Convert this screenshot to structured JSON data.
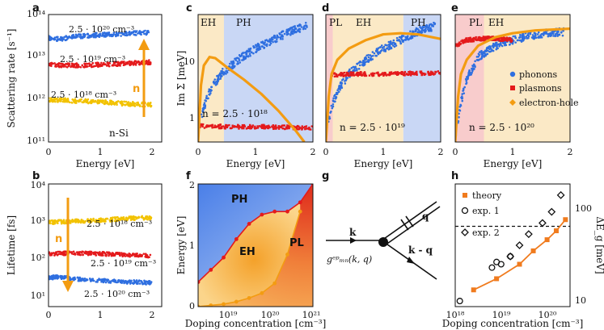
{
  "colors": {
    "blue": "#2f6fe0",
    "red": "#e41a1c",
    "yellow": "#f2c200",
    "orange": "#f39c12",
    "blueFill": "#c9d7f5",
    "tanFill": "#fbe9c6",
    "pinkFill": "#f8cccc",
    "theory": "#f07b1e"
  },
  "chart_data": [
    {
      "id": "a",
      "type": "scatter",
      "label": "a",
      "xlabel": "",
      "ylabel": "Scattering rate [s⁻¹]",
      "xlim": [
        0,
        2.2
      ],
      "ylim_log10": [
        11,
        14
      ],
      "xticks": [
        "0",
        "1",
        "2"
      ],
      "yticks": [
        "10¹¹",
        "10¹²",
        "10¹³",
        "10¹⁴"
      ],
      "series": [
        {
          "name": "2.5 · 10²⁰ cm⁻³",
          "color": "#2f6fe0",
          "x": [
            0.0,
            0.2,
            0.5,
            1.0,
            1.5,
            2.0
          ],
          "log10_y": [
            13.45,
            13.42,
            13.48,
            13.52,
            13.55,
            13.58
          ]
        },
        {
          "name": "2.5 · 10¹⁹ cm⁻³",
          "color": "#e41a1c",
          "x": [
            0.0,
            0.5,
            1.0,
            1.5,
            2.0
          ],
          "log10_y": [
            12.82,
            12.8,
            12.82,
            12.85,
            12.88
          ]
        },
        {
          "name": "2.5 · 10¹⁸ cm⁻³",
          "color": "#f2c200",
          "x": [
            0.0,
            0.5,
            1.0,
            1.5,
            2.0
          ],
          "log10_y": [
            12.0,
            11.97,
            11.95,
            11.9,
            11.88
          ]
        }
      ],
      "annotations": {
        "material": "n-Si",
        "arrow_label": "n"
      }
    },
    {
      "id": "b",
      "type": "scatter",
      "label": "b",
      "xlabel": "Energy [eV]",
      "ylabel": "Lifetime [fs]",
      "xlim": [
        0,
        2.2
      ],
      "ylim_log10": [
        0.8,
        4
      ],
      "xticks": [
        "0",
        "1",
        "2"
      ],
      "yticks": [
        "10¹",
        "10²",
        "10³",
        "10⁴"
      ],
      "series": [
        {
          "name": "2.5 · 10¹⁸ cm⁻³",
          "color": "#f2c200",
          "x": [
            0.0,
            0.5,
            1.0,
            1.5,
            2.0
          ],
          "log10_y": [
            3.0,
            3.03,
            3.05,
            3.1,
            3.12
          ]
        },
        {
          "name": "2.5 · 10¹⁹ cm⁻³",
          "color": "#e41a1c",
          "x": [
            0.0,
            0.5,
            1.0,
            1.5,
            2.0
          ],
          "log10_y": [
            2.18,
            2.2,
            2.18,
            2.15,
            2.12
          ]
        },
        {
          "name": "2.5 · 10²⁰ cm⁻³",
          "color": "#2f6fe0",
          "x": [
            0.0,
            0.2,
            0.5,
            1.0,
            1.5,
            2.0
          ],
          "log10_y": [
            1.55,
            1.58,
            1.52,
            1.48,
            1.45,
            1.42
          ]
        }
      ],
      "annotations": {
        "arrow_label": "n"
      }
    },
    {
      "id": "c",
      "type": "scatter",
      "label": "c",
      "xlabel": "Energy [eV]",
      "ylabel": "Im Σ [meV]",
      "xlim": [
        0,
        2
      ],
      "ylim_log10": [
        -0.5,
        1.75
      ],
      "xticks": [
        "0",
        "1",
        "2"
      ],
      "yticks": [
        "1",
        "10"
      ],
      "regions": [
        {
          "name": "EH",
          "from": 0,
          "to": 0.45,
          "fill": "#fbe9c6"
        },
        {
          "name": "PH",
          "from": 0.45,
          "to": 2,
          "fill": "#c9d7f5"
        }
      ],
      "series": [
        {
          "name": "phonons",
          "color": "#2f6fe0",
          "x": [
            0.0,
            0.1,
            0.2,
            0.4,
            0.7,
            1.0,
            1.3,
            1.6,
            1.9
          ],
          "log10_y": [
            -0.3,
            0.1,
            0.4,
            0.7,
            0.95,
            1.15,
            1.3,
            1.45,
            1.55
          ]
        },
        {
          "name": "plasmons",
          "color": "#e41a1c",
          "x": [
            0.0,
            0.5,
            1.0,
            1.5,
            2.0
          ],
          "log10_y": [
            -0.22,
            -0.23,
            -0.23,
            -0.24,
            -0.25
          ]
        },
        {
          "name": "electron-hole",
          "color": "#f39c12",
          "x": [
            0.0,
            0.05,
            0.1,
            0.2,
            0.3,
            0.5,
            0.8,
            1.1,
            1.4,
            1.7,
            1.85
          ],
          "log10_y": [
            -0.5,
            0.5,
            0.85,
            1.0,
            0.98,
            0.82,
            0.6,
            0.35,
            0.05,
            -0.3,
            -0.5
          ]
        }
      ],
      "annotations": {
        "doping": "n = 2.5 · 10¹⁸"
      }
    },
    {
      "id": "d",
      "type": "scatter",
      "label": "d",
      "xlabel": "Energy [eV]",
      "ylabel": "",
      "xlim": [
        0,
        2
      ],
      "ylim_log10": [
        -0.5,
        1.75
      ],
      "xticks": [
        "0",
        "1",
        "2"
      ],
      "regions": [
        {
          "name": "PL",
          "from": 0,
          "to": 0.12,
          "fill": "#f8cccc"
        },
        {
          "name": "EH",
          "from": 0.12,
          "to": 1.35,
          "fill": "#fbe9c6"
        },
        {
          "name": "PH",
          "from": 1.35,
          "to": 2,
          "fill": "#c9d7f5"
        }
      ],
      "series": [
        {
          "name": "phonons",
          "color": "#2f6fe0",
          "x": [
            0.0,
            0.1,
            0.2,
            0.4,
            0.7,
            1.0,
            1.3,
            1.6,
            1.9
          ],
          "log10_y": [
            -0.3,
            0.1,
            0.4,
            0.7,
            0.95,
            1.15,
            1.3,
            1.45,
            1.55
          ]
        },
        {
          "name": "plasmons",
          "color": "#e41a1c",
          "x": [
            0.1,
            0.5,
            1.0,
            1.5,
            2.0
          ],
          "log10_y": [
            0.68,
            0.7,
            0.7,
            0.71,
            0.72
          ]
        },
        {
          "name": "electron-hole",
          "color": "#f39c12",
          "x": [
            0.0,
            0.05,
            0.1,
            0.2,
            0.4,
            0.7,
            1.0,
            1.3,
            1.6,
            2.0
          ],
          "log10_y": [
            -0.5,
            0.3,
            0.7,
            0.95,
            1.15,
            1.3,
            1.4,
            1.42,
            1.4,
            1.32
          ]
        }
      ],
      "annotations": {
        "doping": "n = 2.5 · 10¹⁹"
      }
    },
    {
      "id": "e",
      "type": "scatter",
      "label": "e",
      "xlabel": "Energy [eV]",
      "ylabel": "",
      "xlim": [
        0,
        2
      ],
      "ylim_log10": [
        -0.5,
        1.75
      ],
      "xticks": [
        "0",
        "1",
        "2"
      ],
      "regions": [
        {
          "name": "PL",
          "from": 0,
          "to": 0.5,
          "fill": "#f8cccc"
        },
        {
          "name": "EH",
          "from": 0.5,
          "to": 2,
          "fill": "#fbe9c6"
        }
      ],
      "series": [
        {
          "name": "phonons",
          "color": "#2f6fe0",
          "x": [
            0.0,
            0.1,
            0.2,
            0.4,
            0.7,
            1.0,
            1.3,
            1.6,
            1.9
          ],
          "log10_y": [
            -0.4,
            0.2,
            0.6,
            1.0,
            1.2,
            1.3,
            1.38,
            1.42,
            1.45
          ]
        },
        {
          "name": "plasmons",
          "color": "#e41a1c",
          "x": [
            0.0,
            0.1,
            0.2,
            0.4,
            0.6,
            1.0
          ],
          "log10_y": [
            1.2,
            1.25,
            1.3,
            1.32,
            1.33,
            1.3
          ]
        },
        {
          "name": "electron-hole",
          "color": "#f39c12",
          "x": [
            0.0,
            0.05,
            0.1,
            0.2,
            0.4,
            0.7,
            1.0,
            1.4,
            2.0
          ],
          "log10_y": [
            -0.5,
            0.3,
            0.7,
            0.95,
            1.2,
            1.35,
            1.42,
            1.47,
            1.5
          ]
        }
      ],
      "legend": [
        "phonons",
        "plasmons",
        "electron-hole"
      ],
      "annotations": {
        "doping": "n = 2.5 · 10²⁰"
      }
    },
    {
      "id": "f",
      "type": "area",
      "label": "f",
      "xlabel": "Doping concentration [cm⁻³]",
      "ylabel": "Energy [eV]",
      "xlim_log10": [
        18.3,
        21
      ],
      "ylim": [
        0,
        2
      ],
      "xticks": [
        "10¹⁹",
        "10²⁰",
        "10²¹"
      ],
      "yticks": [
        "0",
        "1",
        "2"
      ],
      "regions": [
        "PH",
        "EH",
        "PL"
      ],
      "series": [
        {
          "name": "upper boundary",
          "color": "#e41a1c",
          "log10_x": [
            18.3,
            18.6,
            18.9,
            19.2,
            19.5,
            19.8,
            20.1,
            20.4,
            20.7,
            21.0
          ],
          "y": [
            0.4,
            0.6,
            0.8,
            1.1,
            1.35,
            1.5,
            1.55,
            1.55,
            1.7,
            2.0
          ]
        },
        {
          "name": "lower boundary",
          "color": "#f39c12",
          "log10_x": [
            18.3,
            18.6,
            18.9,
            19.2,
            19.5,
            19.8,
            20.1,
            20.4,
            20.7
          ],
          "y": [
            0.0,
            0.02,
            0.04,
            0.08,
            0.14,
            0.22,
            0.38,
            0.85,
            1.55
          ]
        }
      ]
    },
    {
      "id": "g",
      "type": "diagram",
      "label": "g",
      "labels": [
        "k",
        "q",
        "k - q",
        "gᵉᵖₘₙ(k, q)"
      ]
    },
    {
      "id": "h",
      "type": "scatter",
      "label": "h",
      "xlabel": "Doping concentration [cm⁻³]",
      "ylabel": "ΔE_g [meV]",
      "xlim_log10": [
        18,
        20.5
      ],
      "ylim_log10": [
        1,
        2.1
      ],
      "xticks": [
        "10¹⁸",
        "10¹⁹",
        "10²⁰"
      ],
      "yticks": [
        "10",
        "100"
      ],
      "series": [
        {
          "name": "theory",
          "color": "#f07b1e",
          "log10_x": [
            18.4,
            18.9,
            19.4,
            19.7,
            20.0,
            20.2,
            20.4
          ],
          "log10_y": [
            1.15,
            1.25,
            1.38,
            1.5,
            1.6,
            1.68,
            1.78
          ]
        },
        {
          "name": "exp. 1",
          "color": "#111111",
          "log10_x": [
            18.1,
            18.8,
            18.9,
            19.0,
            19.2
          ],
          "log10_y": [
            1.05,
            1.35,
            1.4,
            1.38,
            1.45
          ]
        },
        {
          "name": "exp. 2",
          "color": "#111111",
          "log10_x": [
            19.2,
            19.4,
            19.6,
            19.9,
            20.1,
            20.3
          ],
          "log10_y": [
            1.45,
            1.55,
            1.65,
            1.75,
            1.85,
            2.0
          ]
        }
      ],
      "reference_line_log10_y": 1.72,
      "legend": [
        "theory",
        "exp. 1",
        "exp. 2"
      ]
    }
  ],
  "text": {
    "a_c1": "2.5 · 10²⁰ cm⁻³",
    "a_c2": "2.5 · 10¹⁹ cm⁻³",
    "a_c3": "2.5 · 10¹⁸ cm⁻³",
    "b_c1": "2.5 · 10¹⁸ cm⁻³",
    "b_c2": "2.5 · 10¹⁹ cm⁻³",
    "b_c3": "2.5 · 10²⁰ cm⁻³"
  }
}
